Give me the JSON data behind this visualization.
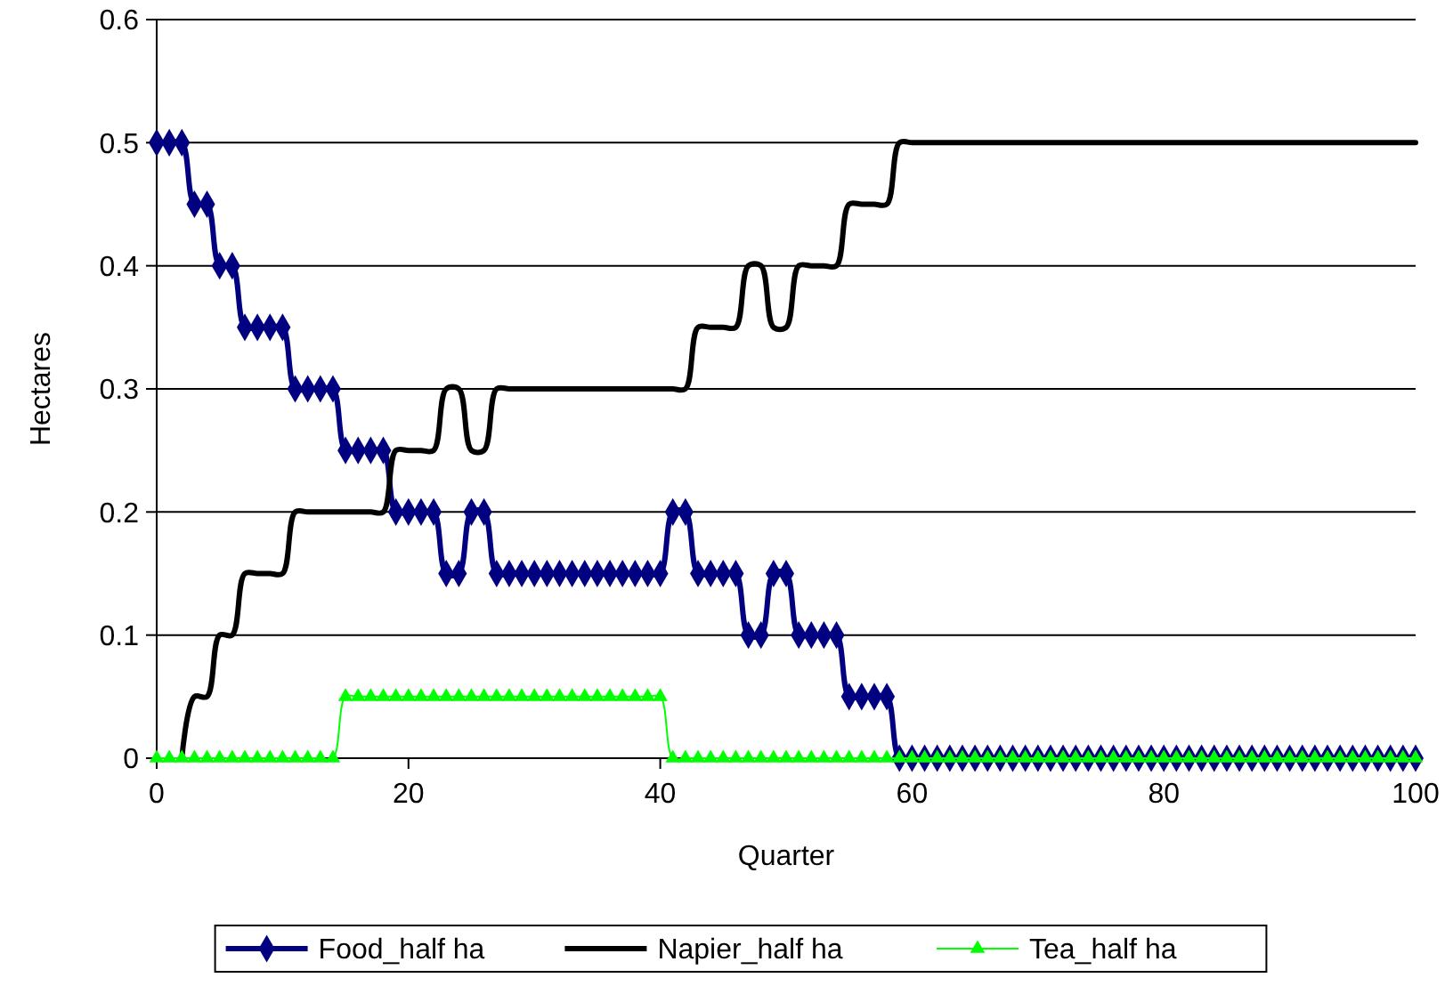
{
  "chart_data": {
    "type": "line",
    "xlabel": "Quarter",
    "ylabel": "Hectares",
    "x": [
      0,
      1,
      2,
      3,
      4,
      5,
      6,
      7,
      8,
      9,
      10,
      11,
      12,
      13,
      14,
      15,
      16,
      17,
      18,
      19,
      20,
      21,
      22,
      23,
      24,
      25,
      26,
      27,
      28,
      29,
      30,
      31,
      32,
      33,
      34,
      35,
      36,
      37,
      38,
      39,
      40,
      41,
      42,
      43,
      44,
      45,
      46,
      47,
      48,
      49,
      50,
      51,
      52,
      53,
      54,
      55,
      56,
      57,
      58,
      59,
      60,
      61,
      62,
      63,
      64,
      65,
      66,
      67,
      68,
      69,
      70,
      71,
      72,
      73,
      74,
      75,
      76,
      77,
      78,
      79,
      80,
      81,
      82,
      83,
      84,
      85,
      86,
      87,
      88,
      89,
      90,
      91,
      92,
      93,
      94,
      95,
      96,
      97,
      98,
      99,
      100
    ],
    "series": [
      {
        "name": "Food_half ha",
        "color": "#000080",
        "marker": "diamond",
        "values": [
          0.5,
          0.5,
          0.5,
          0.45,
          0.45,
          0.4,
          0.4,
          0.35,
          0.35,
          0.35,
          0.35,
          0.3,
          0.3,
          0.3,
          0.3,
          0.25,
          0.25,
          0.25,
          0.25,
          0.2,
          0.2,
          0.2,
          0.2,
          0.15,
          0.15,
          0.2,
          0.2,
          0.15,
          0.15,
          0.15,
          0.15,
          0.15,
          0.15,
          0.15,
          0.15,
          0.15,
          0.15,
          0.15,
          0.15,
          0.15,
          0.15,
          0.2,
          0.2,
          0.15,
          0.15,
          0.15,
          0.15,
          0.1,
          0.1,
          0.15,
          0.15,
          0.1,
          0.1,
          0.1,
          0.1,
          0.05,
          0.05,
          0.05,
          0.05,
          0,
          0,
          0,
          0,
          0,
          0,
          0,
          0,
          0,
          0,
          0,
          0,
          0,
          0,
          0,
          0,
          0,
          0,
          0,
          0,
          0,
          0,
          0,
          0,
          0,
          0,
          0,
          0,
          0,
          0,
          0,
          0,
          0,
          0,
          0,
          0,
          0,
          0,
          0,
          0,
          0,
          0
        ]
      },
      {
        "name": "Napier_half ha",
        "color": "#000000",
        "marker": "none",
        "values": [
          null,
          null,
          0,
          0.05,
          0.05,
          0.1,
          0.1,
          0.15,
          0.15,
          0.15,
          0.15,
          0.2,
          0.2,
          0.2,
          0.2,
          0.2,
          0.2,
          0.2,
          0.2,
          0.25,
          0.25,
          0.25,
          0.25,
          0.3,
          0.3,
          0.25,
          0.25,
          0.3,
          0.3,
          0.3,
          0.3,
          0.3,
          0.3,
          0.3,
          0.3,
          0.3,
          0.3,
          0.3,
          0.3,
          0.3,
          0.3,
          0.3,
          0.3,
          0.35,
          0.35,
          0.35,
          0.35,
          0.4,
          0.4,
          0.35,
          0.35,
          0.4,
          0.4,
          0.4,
          0.4,
          0.45,
          0.45,
          0.45,
          0.45,
          0.5,
          0.5,
          0.5,
          0.5,
          0.5,
          0.5,
          0.5,
          0.5,
          0.5,
          0.5,
          0.5,
          0.5,
          0.5,
          0.5,
          0.5,
          0.5,
          0.5,
          0.5,
          0.5,
          0.5,
          0.5,
          0.5,
          0.5,
          0.5,
          0.5,
          0.5,
          0.5,
          0.5,
          0.5,
          0.5,
          0.5,
          0.5,
          0.5,
          0.5,
          0.5,
          0.5,
          0.5,
          0.5,
          0.5,
          0.5,
          0.5,
          0.5
        ]
      },
      {
        "name": "Tea_half ha",
        "color": "#00ff00",
        "marker": "triangle",
        "values": [
          0,
          0,
          0,
          0,
          0,
          0,
          0,
          0,
          0,
          0,
          0,
          0,
          0,
          0,
          0,
          0.05,
          0.05,
          0.05,
          0.05,
          0.05,
          0.05,
          0.05,
          0.05,
          0.05,
          0.05,
          0.05,
          0.05,
          0.05,
          0.05,
          0.05,
          0.05,
          0.05,
          0.05,
          0.05,
          0.05,
          0.05,
          0.05,
          0.05,
          0.05,
          0.05,
          0.05,
          0,
          0,
          0,
          0,
          0,
          0,
          0,
          0,
          0,
          0,
          0,
          0,
          0,
          0,
          0,
          0,
          0,
          0,
          0,
          0,
          0,
          0,
          0,
          0,
          0,
          0,
          0,
          0,
          0,
          0,
          0,
          0,
          0,
          0,
          0,
          0,
          0,
          0,
          0,
          0,
          0,
          0,
          0,
          0,
          0,
          0,
          0,
          0,
          0,
          0,
          0,
          0,
          0,
          0,
          0,
          0,
          0,
          0,
          0,
          0
        ]
      }
    ],
    "xlim": [
      0,
      100
    ],
    "xticks": [
      0,
      20,
      40,
      60,
      80,
      100
    ],
    "ylim": [
      0,
      0.6
    ],
    "yticks": [
      0,
      0.1,
      0.2,
      0.3,
      0.4,
      0.5,
      0.6
    ],
    "grid": "y",
    "legend": "bottom",
    "line_style": "solid"
  }
}
